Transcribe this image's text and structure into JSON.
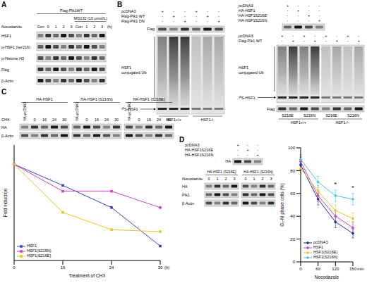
{
  "panels": {
    "A": {
      "letter": "A",
      "header": "Flag-Plk1WT",
      "treatment": "MG132 (10 μmol/L)",
      "time_label": "Nocodazole",
      "lanes": [
        "Con",
        "0",
        "1",
        "2",
        "3",
        "Con",
        "1",
        "2",
        "3"
      ],
      "time_unit": "(h)",
      "blots": [
        "HSF1",
        "p-HSF1 (ser216)",
        "p-Histone H3",
        "Flag",
        "β-Actin"
      ]
    },
    "B": {
      "letter": "B",
      "left": {
        "conditions": [
          {
            "label": "pcDNA3",
            "signs": [
              "+",
              "-",
              "-",
              "+",
              "-",
              "-"
            ]
          },
          {
            "label": "Flag-Plk1 WT",
            "signs": [
              "-",
              "+",
              "-",
              "-",
              "+",
              "-"
            ]
          },
          {
            "label": "Flag-Plk1 DN",
            "signs": [
              "-",
              "-",
              "+",
              "-",
              "-",
              "+"
            ]
          }
        ],
        "blot": "Flag",
        "ub_label": "HSF1 conjugated Ub",
        "band_label": "³⁵S-HSF1",
        "genotypes": [
          "HSF1+/+",
          "HSF1-/-"
        ]
      },
      "right": {
        "top_conditions": [
          {
            "label": "pcDNA3",
            "signs": [
              "+",
              "-",
              "-",
              "-"
            ]
          },
          {
            "label": "HA-HSF1",
            "signs": [
              "-",
              "+",
              "-",
              "-"
            ]
          },
          {
            "label": "HA-HSF1S216E",
            "signs": [
              "-",
              "-",
              "+",
              "-"
            ]
          },
          {
            "label": "HA-HSF1S216N",
            "signs": [
              "-",
              "-",
              "-",
              "+"
            ]
          }
        ],
        "conditions": [
          {
            "label": "pcDNA3",
            "signs": [
              "+",
              "-",
              "+",
              "-",
              "+",
              "-",
              "+",
              "-"
            ]
          },
          {
            "label": "Flag-Plk1 WT",
            "signs": [
              "-",
              "+",
              "-",
              "+",
              "-",
              "+",
              "-",
              "+"
            ]
          }
        ],
        "ub_label": "HSF1 conjugated Ub",
        "band_label": "³⁵S-HSF1",
        "blot": "Flag",
        "mutants": [
          "S216E",
          "S216N",
          "S216E",
          "S216N"
        ],
        "genotypes": [
          "HSF1+/+",
          "HSF1-/-"
        ]
      }
    },
    "C": {
      "letter": "C",
      "groups": [
        "HA-HSF1",
        "HA-HSF1 (S216N)",
        "HA-HSF1 (S216E)"
      ],
      "treatment": "CHX",
      "lanes": [
        "HA-pcDNA3",
        "0",
        "16",
        "24",
        "30"
      ],
      "blots": [
        "HA",
        "β-Actin"
      ]
    },
    "D": {
      "letter": "D",
      "top_conditions": [
        {
          "label": "pcDNA3",
          "signs": [
            "+",
            "-",
            "-"
          ]
        },
        {
          "label": "HA-HSF1S216E",
          "signs": [
            "-",
            "+",
            "-"
          ]
        },
        {
          "label": "HA-HSF1S216N",
          "signs": [
            "-",
            "-",
            "+"
          ]
        }
      ],
      "top_blot": "HA",
      "groups": [
        "HA-HSF1 (S216E)",
        "HA-HSF1 (S216N)"
      ],
      "treatment": "Nocodazole",
      "lanes": [
        "0",
        "1",
        "2",
        "3"
      ],
      "blots": [
        "HA",
        "Plk1",
        "β-Actin"
      ]
    }
  },
  "chart_data": [
    {
      "type": "line",
      "y_label": "Fold induction",
      "x_label": "Treatment of CHX",
      "x_unit": "(h)",
      "categories": [
        "0",
        "16",
        "24",
        "30"
      ],
      "ylim": [
        0,
        1.2
      ],
      "tick_labels": "x",
      "legend": "lower left",
      "marker": "square",
      "series": [
        {
          "name": "HSF1",
          "color": "#3340c8",
          "values": [
            1,
            0.78,
            0.55,
            0.15
          ]
        },
        {
          "name": "HSF1(S216N)",
          "color": "#d23cd2",
          "values": [
            1,
            0.72,
            0.72,
            0.55
          ]
        },
        {
          "name": "HSF1(S216E)",
          "color": "#e3c81c",
          "values": [
            1,
            0.5,
            0.32,
            0.3
          ]
        }
      ]
    },
    {
      "type": "line",
      "y_label": "G₂-M phase cells (%)",
      "x_label": "Nocodazole",
      "x_unit": "min",
      "categories": [
        "0",
        "60",
        "120",
        "150"
      ],
      "ylim": [
        0,
        100
      ],
      "yticks": [
        0,
        20,
        40,
        60,
        80,
        100
      ],
      "legend": "lower left",
      "marker": "diamond",
      "series": [
        {
          "name": "pcDNA3",
          "color": "#1f2f9a",
          "values": [
            85,
            55,
            35,
            25
          ],
          "errors": [
            4,
            5,
            5,
            4
          ]
        },
        {
          "name": "HSF1",
          "color": "#d23cd2",
          "values": [
            88,
            58,
            40,
            30
          ],
          "errors": [
            4,
            5,
            5,
            5
          ]
        },
        {
          "name": "HSF1(S216E)",
          "color": "#e3c81c",
          "values": [
            82,
            62,
            45,
            38
          ],
          "errors": [
            5,
            5,
            5,
            5
          ]
        },
        {
          "name": "HSF1(S216N)",
          "color": "#3cc8e0",
          "values": [
            90,
            70,
            58,
            55
          ],
          "errors": [
            4,
            5,
            5,
            5
          ]
        }
      ],
      "annotations": [
        {
          "x": "120",
          "text": "*"
        },
        {
          "x": "150",
          "text": "*"
        }
      ]
    }
  ]
}
